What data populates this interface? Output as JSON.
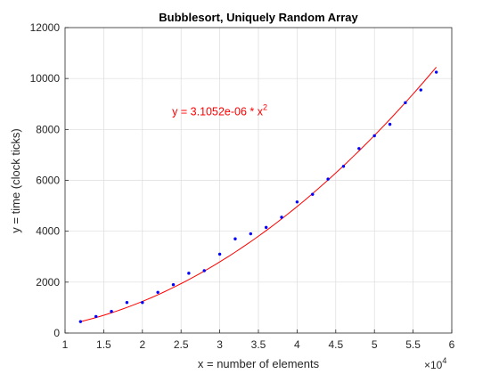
{
  "chart_data": {
    "type": "scatter",
    "title": "Bubblesort, Uniquely Random Array",
    "xlabel": "x = number of elements",
    "ylabel": "y = time (clock ticks)",
    "x_exponent_label": "×10",
    "x_exponent_power": "4",
    "xlim": [
      1,
      6
    ],
    "ylim": [
      0,
      12000
    ],
    "x_ticks": [
      1,
      1.5,
      2,
      2.5,
      3,
      3.5,
      4,
      4.5,
      5,
      5.5,
      6
    ],
    "x_tick_labels": [
      "1",
      "1.5",
      "2",
      "2.5",
      "3",
      "3.5",
      "4",
      "4.5",
      "5",
      "5.5",
      "6"
    ],
    "y_ticks": [
      0,
      2000,
      4000,
      6000,
      8000,
      10000,
      12000
    ],
    "y_tick_labels": [
      "0",
      "2000",
      "4000",
      "6000",
      "8000",
      "10000",
      "12000"
    ],
    "grid": true,
    "series": [
      {
        "kind": "scatter",
        "color": "#0000ff",
        "x": [
          1.2,
          1.4,
          1.6,
          1.8,
          2.0,
          2.2,
          2.4,
          2.6,
          2.8,
          3.0,
          3.2,
          3.4,
          3.6,
          3.8,
          4.0,
          4.2,
          4.4,
          4.6,
          4.8,
          5.0,
          5.2,
          5.4,
          5.6,
          5.8
        ],
        "y": [
          450,
          650,
          850,
          1200,
          1200,
          1600,
          1900,
          2350,
          2450,
          3100,
          3700,
          3900,
          4150,
          4550,
          5150,
          5450,
          6050,
          6550,
          7250,
          7750,
          8200,
          9050,
          9550,
          10250
        ]
      },
      {
        "kind": "line",
        "color": "#ff0000",
        "coefficient": 3.1052e-06,
        "x_range": [
          1.2,
          5.8
        ]
      }
    ],
    "annotation": {
      "text": "y = 3.1052e-06 * x",
      "superscript": "2",
      "color": "#ff0000",
      "x": 3.0,
      "y": 8700
    }
  }
}
